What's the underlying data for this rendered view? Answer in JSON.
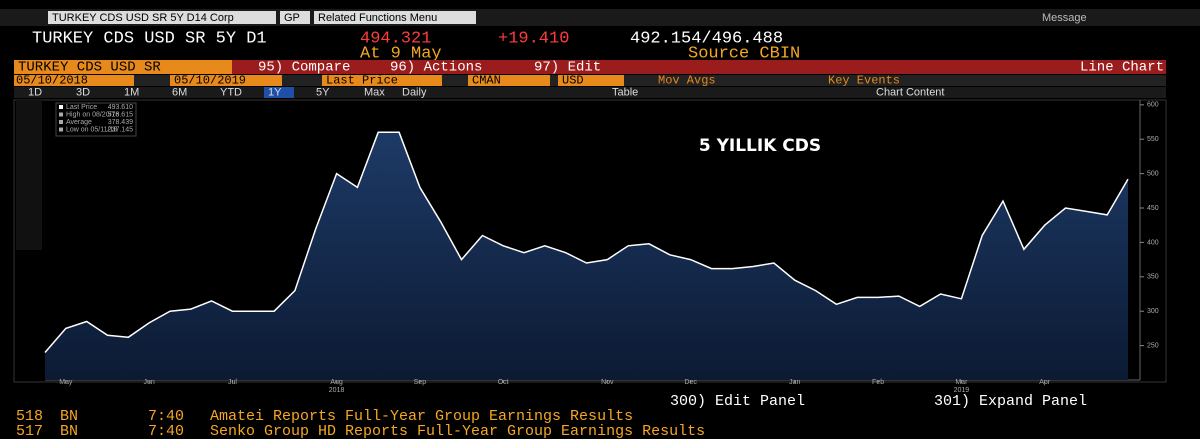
{
  "header": {
    "security": "TURKEY CDS USD SR 5Y D14 Corp",
    "gp": "GP",
    "menu": "Related Functions Menu",
    "message": "Message"
  },
  "quote": {
    "name": "TURKEY CDS USD SR 5Y D1",
    "last": "494.321",
    "change": "+19.410",
    "bid_ask": "492.154/496.488",
    "at": "At 9 May",
    "source": "Source CBIN"
  },
  "toolbar": {
    "ticker": "TURKEY CDS USD SR",
    "items": [
      "95) Compare",
      "96) Actions",
      "97) Edit"
    ],
    "mode": "Line Chart"
  },
  "range": {
    "start": "05/10/2018",
    "end": "05/10/2019",
    "field": "Last Price",
    "source": "CMAN",
    "currency": "USD",
    "mov_avgs": "Mov Avgs",
    "key_events": "Key Events"
  },
  "periods": [
    "1D",
    "3D",
    "1M",
    "6M",
    "YTD",
    "1Y",
    "5Y",
    "Max"
  ],
  "frequency": "Daily",
  "table": "Table",
  "chart_content": "Chart Content",
  "chart_data": {
    "type": "line",
    "title": "5 YILLIK CDS",
    "categories": [
      null,
      "May",
      null,
      null,
      null,
      "Jun",
      null,
      null,
      null,
      "Jul",
      null,
      null,
      null,
      null,
      "Aug",
      null,
      null,
      null,
      "Sep",
      null,
      null,
      null,
      "Oct",
      null,
      null,
      null,
      null,
      "Nov",
      null,
      null,
      null,
      "Dec",
      null,
      null,
      null,
      null,
      "Jan",
      null,
      null,
      null,
      "Feb",
      null,
      null,
      null,
      "Mar",
      null,
      null,
      null,
      "Apr",
      null,
      null,
      null,
      null
    ],
    "year_labels": [
      null,
      null,
      null,
      null,
      null,
      null,
      null,
      null,
      null,
      null,
      null,
      null,
      null,
      null,
      "2018",
      null,
      null,
      null,
      null,
      null,
      null,
      null,
      null,
      null,
      null,
      null,
      null,
      null,
      null,
      null,
      null,
      null,
      null,
      null,
      null,
      null,
      null,
      null,
      null,
      null,
      null,
      null,
      null,
      null,
      "2019",
      null,
      null,
      null,
      null,
      null,
      null,
      null,
      null
    ],
    "series": [
      {
        "name": "Last Price",
        "color": "#ffffff",
        "values": [
          240,
          275,
          285,
          265,
          262,
          283,
          300,
          303,
          315,
          300,
          300,
          300,
          330,
          420,
          500,
          480,
          560,
          560,
          480,
          430,
          375,
          410,
          395,
          385,
          395,
          385,
          370,
          375,
          395,
          398,
          382,
          375,
          362,
          362,
          365,
          370,
          345,
          330,
          310,
          320,
          320,
          322,
          307,
          325,
          318,
          410,
          460,
          390,
          425,
          450,
          445,
          440,
          492
        ]
      }
    ],
    "stats": [
      {
        "value": "493.610"
      },
      {
        "label": "High on 08/20/18",
        "value": "576.615"
      },
      {
        "label": "Average",
        "value": "378.439"
      },
      {
        "label": "Low on 05/11/18",
        "value": "237.145"
      }
    ],
    "ylim": [
      200,
      607
    ],
    "yticks": [
      250,
      300,
      350,
      400,
      450,
      500,
      550,
      600
    ],
    "grid": false
  },
  "panel": [
    "300) Edit Panel",
    "301) Expand Panel"
  ],
  "news": [
    {
      "id": "518",
      "source": "BN",
      "time": "7:40",
      "headline": "Amatei Reports Full-Year Group Earnings Results"
    },
    {
      "id": "517",
      "source": "BN",
      "time": "7:40",
      "headline": "Senko Group HD Reports Full-Year Group Earnings Results"
    }
  ]
}
